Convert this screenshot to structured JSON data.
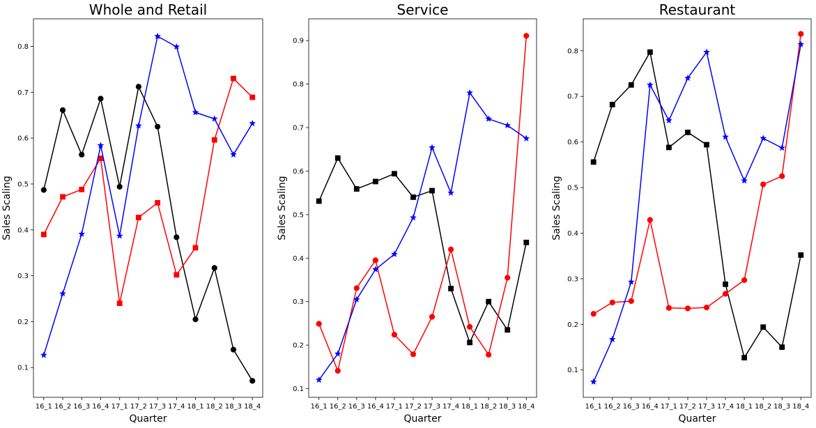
{
  "chart_data": [
    {
      "type": "line",
      "title": "Whole and Retail",
      "xlabel": "Quarter",
      "ylabel": "Sales Scaling",
      "categories": [
        "16_1",
        "16_2",
        "16_3",
        "16_4",
        "17_1",
        "17_2",
        "17_3",
        "17_4",
        "18_1",
        "18_2",
        "18_3",
        "18_4"
      ],
      "ylim": [
        0.035,
        0.86
      ],
      "yticks": [
        0.1,
        0.2,
        0.3,
        0.4,
        0.5,
        0.6,
        0.7,
        0.8
      ],
      "ytick_labels": [
        "0.1",
        "0.2",
        "0.3",
        "0.4",
        "0.5",
        "0.6",
        "0.7",
        "0.8"
      ],
      "grid": false,
      "series": [
        {
          "color": "#000000",
          "marker": "circle",
          "values": [
            0.487,
            0.661,
            0.564,
            0.686,
            0.494,
            0.712,
            0.625,
            0.384,
            0.205,
            0.317,
            0.139,
            0.071
          ]
        },
        {
          "color": "#ff0000",
          "marker": "square",
          "values": [
            0.39,
            0.472,
            0.488,
            0.556,
            0.24,
            0.427,
            0.459,
            0.302,
            0.361,
            0.596,
            0.73,
            0.689
          ]
        },
        {
          "color": "#0000ff",
          "marker": "star",
          "values": [
            0.127,
            0.261,
            0.391,
            0.584,
            0.387,
            0.627,
            0.822,
            0.799,
            0.656,
            0.642,
            0.564,
            0.632
          ]
        }
      ]
    },
    {
      "type": "line",
      "title": "Service",
      "xlabel": "Quarter",
      "ylabel": "Sales Scaling",
      "categories": [
        "16_1",
        "16_2",
        "16_3",
        "16_4",
        "17_1",
        "17_2",
        "17_3",
        "17_4",
        "18_1",
        "18_2",
        "18_3",
        "18_4"
      ],
      "ylim": [
        0.08,
        0.95
      ],
      "yticks": [
        0.1,
        0.2,
        0.3,
        0.4,
        0.5,
        0.6,
        0.7,
        0.8,
        0.9
      ],
      "ytick_labels": [
        "0.1",
        "0.2",
        "0.3",
        "0.4",
        "0.5",
        "0.6",
        "0.7",
        "0.8",
        "0.9"
      ],
      "grid": false,
      "series": [
        {
          "color": "#000000",
          "marker": "square",
          "values": [
            0.531,
            0.63,
            0.559,
            0.576,
            0.594,
            0.54,
            0.555,
            0.33,
            0.206,
            0.3,
            0.235,
            0.436
          ]
        },
        {
          "color": "#ff0000",
          "marker": "circle",
          "values": [
            0.249,
            0.141,
            0.331,
            0.395,
            0.224,
            0.179,
            0.265,
            0.42,
            0.242,
            0.178,
            0.355,
            0.911
          ]
        },
        {
          "color": "#0000ff",
          "marker": "star",
          "values": [
            0.12,
            0.18,
            0.305,
            0.374,
            0.409,
            0.493,
            0.654,
            0.55,
            0.78,
            0.72,
            0.705,
            0.675
          ]
        }
      ]
    },
    {
      "type": "line",
      "title": "Restaurant",
      "xlabel": "Quarter",
      "ylabel": "Sales Scaling",
      "categories": [
        "16_1",
        "16_2",
        "16_3",
        "16_4",
        "17_1",
        "17_2",
        "17_3",
        "17_4",
        "18_1",
        "18_2",
        "18_3",
        "18_4"
      ],
      "ylim": [
        0.04,
        0.87
      ],
      "yticks": [
        0.1,
        0.2,
        0.3,
        0.4,
        0.5,
        0.6,
        0.7,
        0.8
      ],
      "ytick_labels": [
        "0.1",
        "0.2",
        "0.3",
        "0.4",
        "0.5",
        "0.6",
        "0.7",
        "0.8"
      ],
      "grid": false,
      "series": [
        {
          "color": "#000000",
          "marker": "square",
          "values": [
            0.556,
            0.682,
            0.725,
            0.797,
            0.588,
            0.621,
            0.594,
            0.288,
            0.127,
            0.194,
            0.15,
            0.352
          ]
        },
        {
          "color": "#ff0000",
          "marker": "circle",
          "values": [
            0.223,
            0.248,
            0.251,
            0.429,
            0.236,
            0.235,
            0.237,
            0.267,
            0.297,
            0.507,
            0.525,
            0.837
          ]
        },
        {
          "color": "#0000ff",
          "marker": "star",
          "values": [
            0.074,
            0.167,
            0.293,
            0.725,
            0.647,
            0.74,
            0.797,
            0.611,
            0.515,
            0.608,
            0.587,
            0.814
          ]
        }
      ]
    }
  ]
}
